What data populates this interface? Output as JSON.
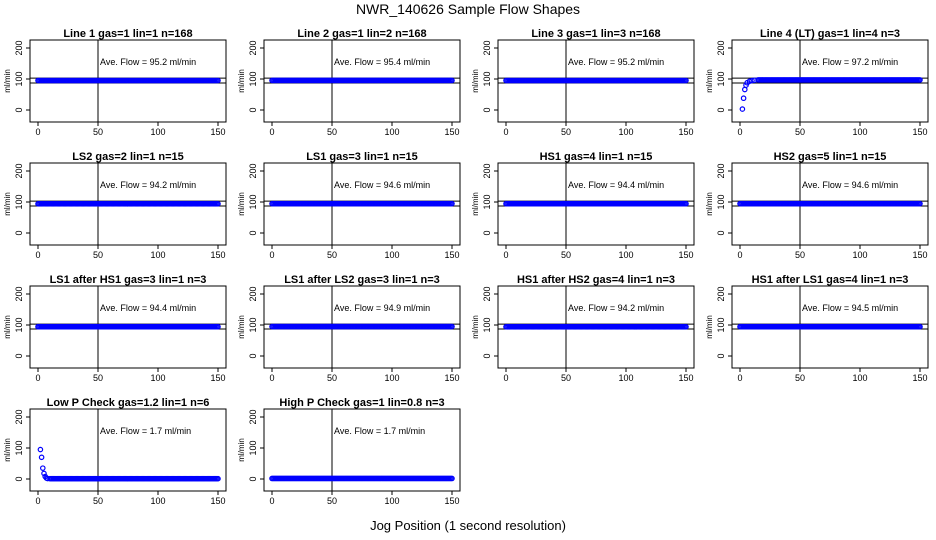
{
  "page": {
    "title": "NWR_140626  Sample Flow Shapes",
    "xlabel": "Jog Position (1 second resolution)"
  },
  "style": {
    "point_color": "#0000ff",
    "line_color": "#000000"
  },
  "chart_data": [
    {
      "type": "scatter",
      "title": "Line 1 gas=1 lin=1 n=168",
      "annotation": "Ave. Flow = 95.2  ml/min",
      "ylabel": "ml/min",
      "xlim": [
        0,
        150
      ],
      "ylim": [
        0,
        200
      ],
      "xticks": [
        0,
        50,
        100,
        150
      ],
      "yticks": [
        0,
        100,
        200
      ],
      "vline_x": 50,
      "hline_y": [
        87,
        103
      ],
      "series": [
        {
          "x": [
            0,
            150
          ],
          "y": [
            95.2,
            95.2
          ],
          "shape": "flat"
        }
      ]
    },
    {
      "type": "scatter",
      "title": "Line 2 gas=1 lin=2 n=168",
      "annotation": "Ave. Flow = 95.4  ml/min",
      "ylabel": "ml/min",
      "xlim": [
        0,
        150
      ],
      "ylim": [
        0,
        200
      ],
      "xticks": [
        0,
        50,
        100,
        150
      ],
      "yticks": [
        0,
        100,
        200
      ],
      "vline_x": 50,
      "hline_y": [
        87,
        103
      ],
      "series": [
        {
          "x": [
            0,
            150
          ],
          "y": [
            95.4,
            95.4
          ],
          "shape": "flat"
        }
      ]
    },
    {
      "type": "scatter",
      "title": "Line 3 gas=1 lin=3 n=168",
      "annotation": "Ave. Flow = 95.2  ml/min",
      "ylabel": "ml/min",
      "xlim": [
        0,
        150
      ],
      "ylim": [
        0,
        200
      ],
      "xticks": [
        0,
        50,
        100,
        150
      ],
      "yticks": [
        0,
        100,
        200
      ],
      "vline_x": 50,
      "hline_y": [
        87,
        103
      ],
      "series": [
        {
          "x": [
            0,
            150
          ],
          "y": [
            95.2,
            95.2
          ],
          "shape": "flat"
        }
      ]
    },
    {
      "type": "scatter",
      "title": "Line 4 (LT) gas=1 lin=4 n=3",
      "annotation": "Ave. Flow = 97.2  ml/min",
      "ylabel": "ml/min",
      "xlim": [
        0,
        150
      ],
      "ylim": [
        0,
        200
      ],
      "xticks": [
        0,
        50,
        100,
        150
      ],
      "yticks": [
        0,
        100,
        200
      ],
      "vline_x": 50,
      "hline_y": [
        87,
        103
      ],
      "series": [
        {
          "x": [
            2,
            3,
            4,
            5,
            6,
            8,
            10,
            12,
            15,
            150
          ],
          "y": [
            3,
            38,
            66,
            80,
            88,
            93,
            95,
            96,
            97,
            97
          ],
          "shape": "ramp"
        }
      ]
    },
    {
      "type": "scatter",
      "title": "LS2 gas=2 lin=1 n=15",
      "annotation": "Ave. Flow = 94.2  ml/min",
      "ylabel": "ml/min",
      "xlim": [
        0,
        150
      ],
      "ylim": [
        0,
        200
      ],
      "xticks": [
        0,
        50,
        100,
        150
      ],
      "yticks": [
        0,
        100,
        200
      ],
      "vline_x": 50,
      "hline_y": [
        87,
        103
      ],
      "series": [
        {
          "x": [
            0,
            150
          ],
          "y": [
            94.2,
            94.2
          ],
          "shape": "flat"
        }
      ]
    },
    {
      "type": "scatter",
      "title": "LS1 gas=3 lin=1 n=15",
      "annotation": "Ave. Flow = 94.6  ml/min",
      "ylabel": "ml/min",
      "xlim": [
        0,
        150
      ],
      "ylim": [
        0,
        200
      ],
      "xticks": [
        0,
        50,
        100,
        150
      ],
      "yticks": [
        0,
        100,
        200
      ],
      "vline_x": 50,
      "hline_y": [
        87,
        103
      ],
      "series": [
        {
          "x": [
            0,
            150
          ],
          "y": [
            94.6,
            94.6
          ],
          "shape": "flat"
        }
      ]
    },
    {
      "type": "scatter",
      "title": "HS1 gas=4 lin=1 n=15",
      "annotation": "Ave. Flow = 94.4  ml/min",
      "ylabel": "ml/min",
      "xlim": [
        0,
        150
      ],
      "ylim": [
        0,
        200
      ],
      "xticks": [
        0,
        50,
        100,
        150
      ],
      "yticks": [
        0,
        100,
        200
      ],
      "vline_x": 50,
      "hline_y": [
        87,
        103
      ],
      "series": [
        {
          "x": [
            0,
            150
          ],
          "y": [
            94.4,
            94.4
          ],
          "shape": "flat"
        }
      ]
    },
    {
      "type": "scatter",
      "title": "HS2 gas=5 lin=1 n=15",
      "annotation": "Ave. Flow = 94.6  ml/min",
      "ylabel": "ml/min",
      "xlim": [
        0,
        150
      ],
      "ylim": [
        0,
        200
      ],
      "xticks": [
        0,
        50,
        100,
        150
      ],
      "yticks": [
        0,
        100,
        200
      ],
      "vline_x": 50,
      "hline_y": [
        87,
        103
      ],
      "series": [
        {
          "x": [
            0,
            150
          ],
          "y": [
            94.6,
            94.6
          ],
          "shape": "flat"
        }
      ]
    },
    {
      "type": "scatter",
      "title": "LS1 after HS1 gas=3 lin=1 n=3",
      "annotation": "Ave. Flow = 94.4  ml/min",
      "ylabel": "ml/min",
      "xlim": [
        0,
        150
      ],
      "ylim": [
        0,
        200
      ],
      "xticks": [
        0,
        50,
        100,
        150
      ],
      "yticks": [
        0,
        100,
        200
      ],
      "vline_x": 50,
      "hline_y": [
        87,
        103
      ],
      "series": [
        {
          "x": [
            0,
            150
          ],
          "y": [
            94.4,
            94.4
          ],
          "shape": "flat"
        }
      ]
    },
    {
      "type": "scatter",
      "title": "LS1 after LS2 gas=3 lin=1 n=3",
      "annotation": "Ave. Flow = 94.9  ml/min",
      "ylabel": "ml/min",
      "xlim": [
        0,
        150
      ],
      "ylim": [
        0,
        200
      ],
      "xticks": [
        0,
        50,
        100,
        150
      ],
      "yticks": [
        0,
        100,
        200
      ],
      "vline_x": 50,
      "hline_y": [
        87,
        103
      ],
      "series": [
        {
          "x": [
            0,
            150
          ],
          "y": [
            94.9,
            94.9
          ],
          "shape": "flat"
        }
      ]
    },
    {
      "type": "scatter",
      "title": "HS1 after HS2 gas=4 lin=1 n=3",
      "annotation": "Ave. Flow = 94.2  ml/min",
      "ylabel": "ml/min",
      "xlim": [
        0,
        150
      ],
      "ylim": [
        0,
        200
      ],
      "xticks": [
        0,
        50,
        100,
        150
      ],
      "yticks": [
        0,
        100,
        200
      ],
      "vline_x": 50,
      "hline_y": [
        87,
        103
      ],
      "series": [
        {
          "x": [
            0,
            150
          ],
          "y": [
            94.2,
            94.2
          ],
          "shape": "flat"
        }
      ]
    },
    {
      "type": "scatter",
      "title": "HS1 after LS1 gas=4 lin=1 n=3",
      "annotation": "Ave. Flow = 94.5  ml/min",
      "ylabel": "ml/min",
      "xlim": [
        0,
        150
      ],
      "ylim": [
        0,
        200
      ],
      "xticks": [
        0,
        50,
        100,
        150
      ],
      "yticks": [
        0,
        100,
        200
      ],
      "vline_x": 50,
      "hline_y": [
        87,
        103
      ],
      "series": [
        {
          "x": [
            0,
            150
          ],
          "y": [
            94.5,
            94.5
          ],
          "shape": "flat"
        }
      ]
    },
    {
      "type": "scatter",
      "title": "Low P Check gas=1.2 lin=1 n=6",
      "annotation": "Ave. Flow = 1.7  ml/min",
      "ylabel": "ml/min",
      "xlim": [
        0,
        150
      ],
      "ylim": [
        0,
        200
      ],
      "xticks": [
        0,
        50,
        100,
        150
      ],
      "yticks": [
        0,
        100,
        200
      ],
      "vline_x": 50,
      "hline_y": [],
      "series": [
        {
          "x": [
            2,
            3,
            4,
            5,
            6,
            7,
            8,
            10,
            150
          ],
          "y": [
            95,
            70,
            35,
            18,
            8,
            3,
            1.5,
            1,
            1
          ],
          "shape": "decay"
        }
      ]
    },
    {
      "type": "scatter",
      "title": "High P Check gas=1 lin=0.8 n=3",
      "annotation": "Ave. Flow = 1.7  ml/min",
      "ylabel": "ml/min",
      "xlim": [
        0,
        150
      ],
      "ylim": [
        0,
        200
      ],
      "xticks": [
        0,
        50,
        100,
        150
      ],
      "yticks": [
        0,
        100,
        200
      ],
      "vline_x": 50,
      "hline_y": [],
      "series": [
        {
          "x": [
            0,
            150
          ],
          "y": [
            1.7,
            1.7
          ],
          "shape": "flat"
        }
      ]
    }
  ]
}
